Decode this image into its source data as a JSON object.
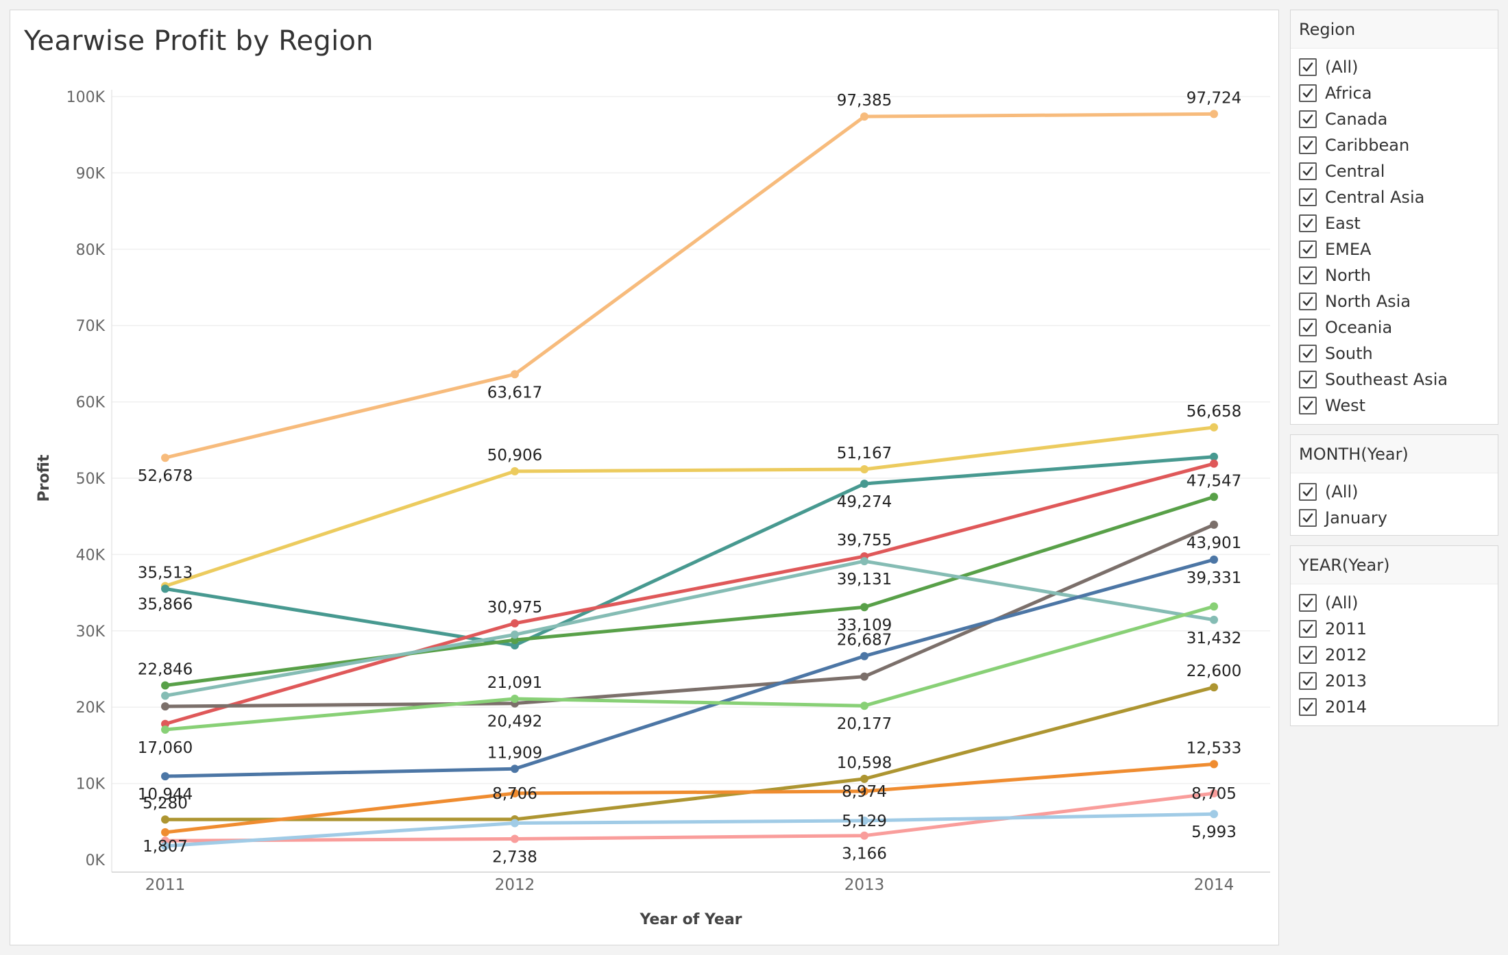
{
  "chart_title": "Yearwise Profit by Region",
  "chart_data": {
    "type": "line",
    "title": "Yearwise Profit by Region",
    "xlabel": "Year of Year",
    "ylabel": "Profit",
    "x": [
      "2011",
      "2012",
      "2013",
      "2014"
    ],
    "ylim": [
      0,
      100000
    ],
    "yticks": [
      {
        "value": 0,
        "label": "0K"
      },
      {
        "value": 10000,
        "label": "10K"
      },
      {
        "value": 20000,
        "label": "20K"
      },
      {
        "value": 30000,
        "label": "30K"
      },
      {
        "value": 40000,
        "label": "40K"
      },
      {
        "value": 50000,
        "label": "50K"
      },
      {
        "value": 60000,
        "label": "60K"
      },
      {
        "value": 70000,
        "label": "70K"
      },
      {
        "value": 80000,
        "label": "80K"
      },
      {
        "value": 90000,
        "label": "90K"
      },
      {
        "value": 100000,
        "label": "100K"
      }
    ],
    "grid": true,
    "series": [
      {
        "color": "#f7bb7c",
        "values": [
          52678,
          63617,
          97385,
          97724
        ],
        "labels": [
          "52,678",
          "63,617",
          "97,385",
          "97,724"
        ],
        "label_pos": [
          "below",
          "below",
          "above",
          "above"
        ]
      },
      {
        "color": "#eccb5e",
        "values": [
          35866,
          50906,
          51167,
          56658
        ],
        "labels": [
          "35,866",
          "50,906",
          "51,167",
          "56,658"
        ],
        "label_pos": [
          "below",
          "above",
          "above",
          "above"
        ]
      },
      {
        "color": "#479990",
        "values": [
          35513,
          28100,
          49274,
          52800
        ],
        "labels": [
          "35,513",
          "",
          "49,274",
          ""
        ],
        "label_pos": [
          "above",
          "",
          "below",
          ""
        ]
      },
      {
        "color": "#df5859",
        "values": [
          17800,
          30975,
          39755,
          51900
        ],
        "labels": [
          "",
          "30,975",
          "39,755",
          ""
        ],
        "label_pos": [
          "",
          "above",
          "above",
          ""
        ]
      },
      {
        "color": "#58a048",
        "values": [
          22846,
          28800,
          33109,
          47547
        ],
        "labels": [
          "22,846",
          "",
          "33,109",
          "47,547"
        ],
        "label_pos": [
          "above",
          "",
          "below",
          "above"
        ]
      },
      {
        "color": "#7b6f6a",
        "values": [
          20100,
          20492,
          24000,
          43901
        ],
        "labels": [
          "",
          "20,492",
          "",
          "43,901"
        ],
        "label_pos": [
          "",
          "below",
          "",
          "below"
        ]
      },
      {
        "color": "#85bcb4",
        "values": [
          21500,
          29500,
          39131,
          31432
        ],
        "labels": [
          "",
          "",
          "39,131",
          "31,432"
        ],
        "label_pos": [
          "",
          "",
          "below",
          "below"
        ]
      },
      {
        "color": "#4c76a5",
        "values": [
          10944,
          11909,
          26687,
          39331
        ],
        "labels": [
          "10,944",
          "11,909",
          "26,687",
          "39,331"
        ],
        "label_pos": [
          "below",
          "above",
          "above",
          "below"
        ]
      },
      {
        "color": "#88d076",
        "values": [
          17060,
          21091,
          20177,
          33200
        ],
        "labels": [
          "17,060",
          "21,091",
          "20,177",
          ""
        ],
        "label_pos": [
          "below",
          "above",
          "below",
          ""
        ]
      },
      {
        "color": "#ad9531",
        "values": [
          5280,
          5300,
          10598,
          22600
        ],
        "labels": [
          "5,280",
          "",
          "10,598",
          "22,600"
        ],
        "label_pos": [
          "above",
          "",
          "above",
          "above"
        ]
      },
      {
        "color": "#ef8c30",
        "values": [
          3600,
          8706,
          8974,
          12533
        ],
        "labels": [
          "",
          "8,706",
          "8,974",
          "12,533"
        ],
        "label_pos": [
          "",
          "inline",
          "inline",
          "above"
        ]
      },
      {
        "color": "#f99d9b",
        "values": [
          2500,
          2738,
          3166,
          8705
        ],
        "labels": [
          "",
          "2,738",
          "3,166",
          "8,705"
        ],
        "label_pos": [
          "",
          "below",
          "below",
          "inline"
        ]
      },
      {
        "color": "#a0cbe6",
        "values": [
          1807,
          4800,
          5129,
          5993
        ],
        "labels": [
          "1,807",
          "",
          "5,129",
          "5,993"
        ],
        "label_pos": [
          "inline",
          "",
          "inline",
          "below"
        ]
      }
    ]
  },
  "filters": [
    {
      "title": "Region",
      "items": [
        "(All)",
        "Africa",
        "Canada",
        "Caribbean",
        "Central",
        "Central Asia",
        "East",
        "EMEA",
        "North",
        "North Asia",
        "Oceania",
        "South",
        "Southeast Asia",
        "West"
      ]
    },
    {
      "title": "MONTH(Year)",
      "items": [
        "(All)",
        "January"
      ]
    },
    {
      "title": "YEAR(Year)",
      "items": [
        "(All)",
        "2011",
        "2012",
        "2013",
        "2014"
      ]
    }
  ]
}
